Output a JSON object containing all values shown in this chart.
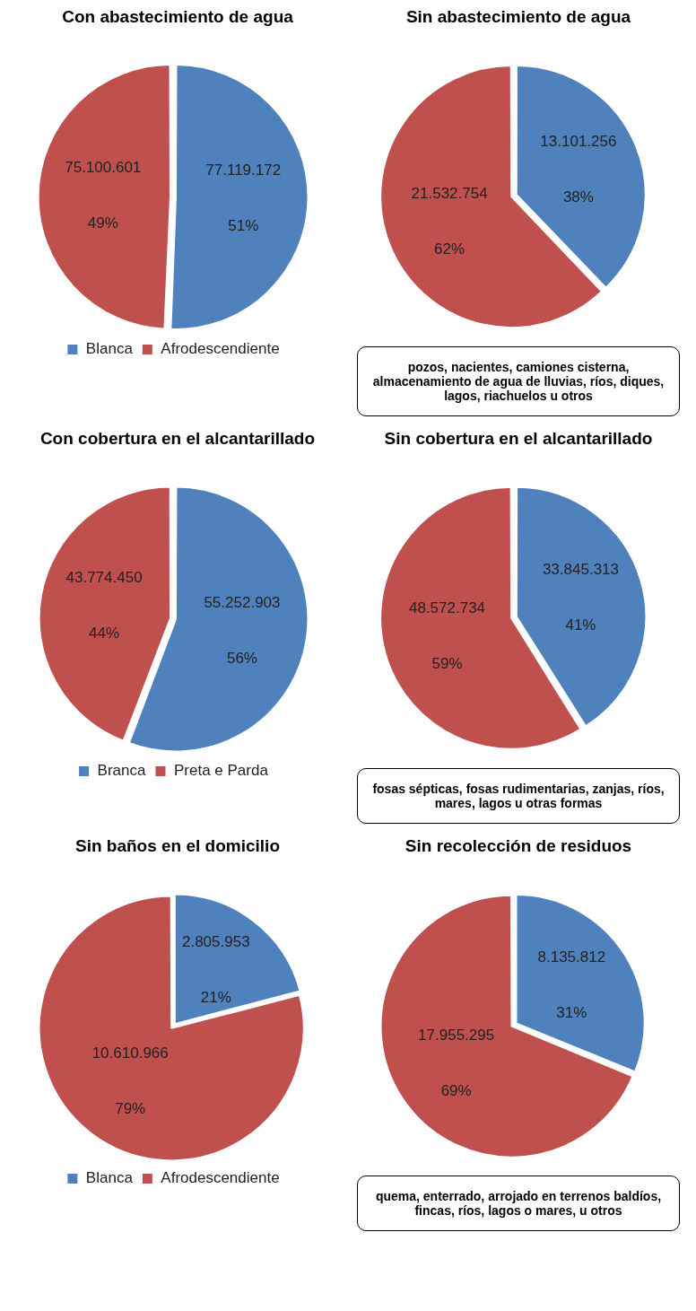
{
  "chart_data": [
    {
      "type": "pie",
      "title": "Con abastecimiento de agua",
      "categories": [
        "Blanca",
        "Afrodescendiente"
      ],
      "values": [
        77119172,
        75100601
      ],
      "colors": [
        "#4f81bd",
        "#c0504d"
      ],
      "value_labels": [
        "77.119.172",
        "75.100.601"
      ],
      "annotations": [
        "51%",
        "49%"
      ],
      "legend": "bottom"
    },
    {
      "type": "pie",
      "title": "Sin abastecimiento de agua",
      "categories": [
        null,
        null
      ],
      "values": [
        13101256,
        21532754
      ],
      "colors": [
        "#4f81bd",
        "#c0504d"
      ],
      "value_labels": [
        "13.101.256",
        "21.532.754"
      ],
      "annotations": [
        "38%",
        "62%",
        "pozos, nacientes, camiones cisterna, almacenamiento de agua de lluvias, ríos, diques, lagos, riachuelos u otros"
      ]
    },
    {
      "type": "pie",
      "title": "Con cobertura en el alcantarillado",
      "categories": [
        "Branca",
        "Preta e Parda"
      ],
      "values": [
        55252903,
        43774450
      ],
      "colors": [
        "#4f81bd",
        "#c0504d"
      ],
      "value_labels": [
        "55.252.903",
        "43.774.450"
      ],
      "annotations": [
        "56%",
        "44%"
      ],
      "legend": "bottom"
    },
    {
      "type": "pie",
      "title": "Sin cobertura en el alcantarillado",
      "categories": [
        null,
        null
      ],
      "values": [
        33845313,
        48572734
      ],
      "colors": [
        "#4f81bd",
        "#c0504d"
      ],
      "value_labels": [
        "33.845.313",
        "48.572.734"
      ],
      "annotations": [
        "41%",
        "59%",
        "fosas sépticas, fosas rudimentarias, zanjas, ríos, mares, lagos u otras formas"
      ]
    },
    {
      "type": "pie",
      "title": "Sin baños en el domicilio",
      "categories": [
        "Blanca",
        "Afrodescendiente"
      ],
      "values": [
        2805953,
        10610966
      ],
      "colors": [
        "#4f81bd",
        "#c0504d"
      ],
      "value_labels": [
        "2.805.953",
        "10.610.966"
      ],
      "annotations": [
        "21%",
        "79%"
      ],
      "legend": "bottom"
    },
    {
      "type": "pie",
      "title": "Sin recolección de residuos",
      "categories": [
        null,
        null
      ],
      "values": [
        8135812,
        17955295
      ],
      "colors": [
        "#4f81bd",
        "#c0504d"
      ],
      "value_labels": [
        "8.135.812",
        "17.955.295"
      ],
      "annotations": [
        "31%",
        "69%",
        "quema, enterrado, arrojado en terrenos baldíos, fincas, ríos, lagos o mares, u otros"
      ]
    }
  ]
}
